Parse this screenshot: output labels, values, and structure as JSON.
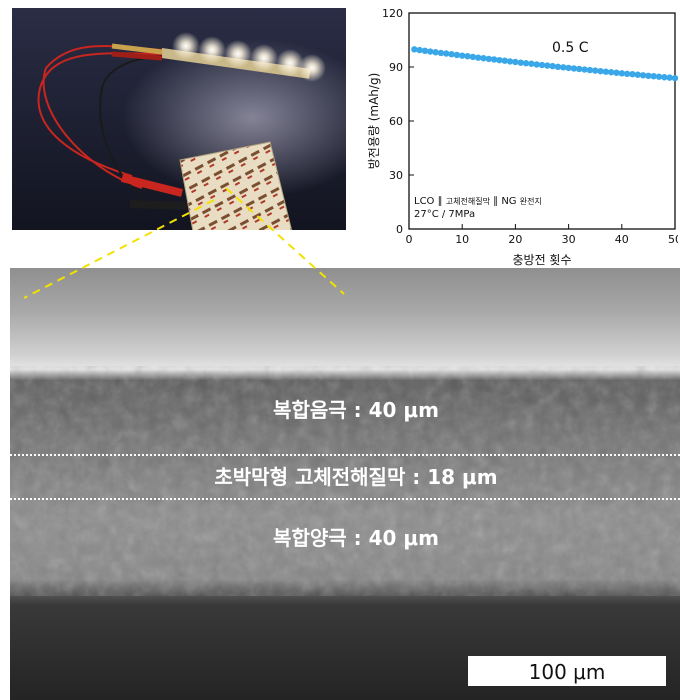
{
  "colors": {
    "series": "#3aa8e8",
    "label_overlay": "#ffffff",
    "connector": "#f2e200",
    "scale_bar_box": "#ffffff"
  },
  "photo": {
    "content": "LED strip lit by pouch cell via alligator-clip leads",
    "pouch_label_text": "ELLAB"
  },
  "chart_data": {
    "type": "scatter",
    "title": "0.5 C",
    "xlabel": "충방전 횟수",
    "ylabel": "방전용량 (mAh/g)",
    "xlim": [
      0,
      50
    ],
    "ylim": [
      0,
      120
    ],
    "xticks": [
      "0",
      "10",
      "20",
      "30",
      "40",
      "50"
    ],
    "yticks": [
      "0",
      "30",
      "60",
      "90",
      "120"
    ],
    "grid": false,
    "annotation_line1": {
      "prefix": "LCO ∥ ",
      "sub1": "고체전해질막",
      "mid": " ∥ NG ",
      "sub2": "완전지"
    },
    "annotation_line2": "27°C / 7MPa",
    "x": [
      1,
      2,
      3,
      4,
      5,
      6,
      7,
      8,
      9,
      10,
      11,
      12,
      13,
      14,
      15,
      16,
      17,
      18,
      19,
      20,
      21,
      22,
      23,
      24,
      25,
      26,
      27,
      28,
      29,
      30,
      31,
      32,
      33,
      34,
      35,
      36,
      37,
      38,
      39,
      40,
      41,
      42,
      43,
      44,
      45,
      46,
      47,
      48,
      49,
      50
    ],
    "values": [
      99.8,
      99.4,
      99.0,
      98.6,
      98.2,
      97.8,
      97.5,
      97.1,
      96.7,
      96.3,
      96.0,
      95.6,
      95.2,
      94.9,
      94.5,
      94.2,
      93.8,
      93.5,
      93.1,
      92.8,
      92.4,
      92.1,
      91.8,
      91.4,
      91.1,
      90.8,
      90.5,
      90.1,
      89.8,
      89.5,
      89.2,
      88.9,
      88.6,
      88.3,
      88.0,
      87.7,
      87.4,
      87.1,
      86.8,
      86.5,
      86.2,
      86.0,
      85.7,
      85.4,
      85.1,
      84.9,
      84.6,
      84.3,
      84.1,
      83.8
    ]
  },
  "sem": {
    "label_anode": "복합음극 : 40 μm",
    "label_electrolyte": "초박막형 고체전해질막 :  18 μm",
    "label_cathode": "복합양극 : 40 μm",
    "scale_bar_label": "100 μm"
  }
}
